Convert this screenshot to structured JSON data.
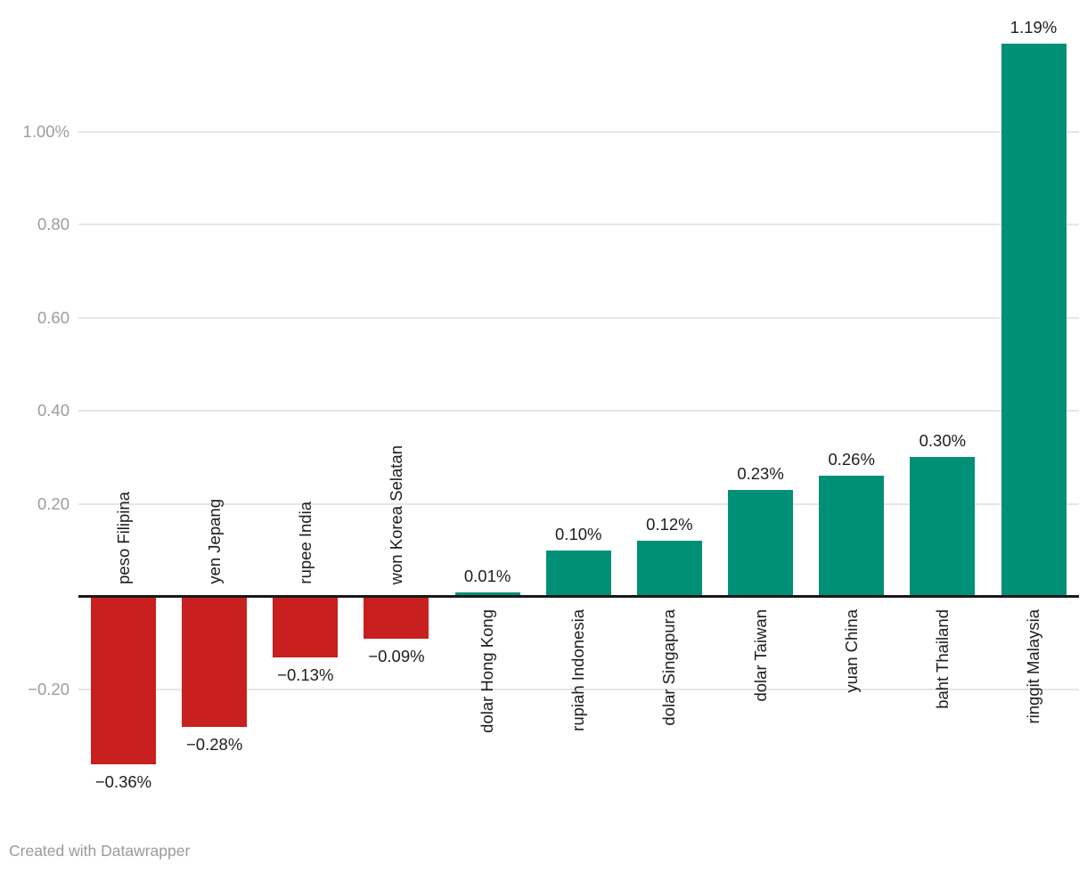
{
  "chart_data": {
    "type": "bar",
    "title": "",
    "xlabel": "",
    "ylabel": "",
    "categories": [
      "peso Filipina",
      "yen Jepang",
      "rupee India",
      "won Korea Selatan",
      "dolar Hong Kong",
      "rupiah Indonesia",
      "dolar Singapura",
      "dolar Taiwan",
      "yuan China",
      "baht Thailand",
      "ringgit Malaysia"
    ],
    "values": [
      -0.36,
      -0.28,
      -0.13,
      -0.09,
      0.01,
      0.1,
      0.12,
      0.23,
      0.26,
      0.3,
      1.19
    ],
    "value_labels": [
      "−0.36%",
      "−0.28%",
      "−0.13%",
      "−0.09%",
      "0.01%",
      "0.10%",
      "0.12%",
      "0.23%",
      "0.26%",
      "0.30%",
      "1.19%"
    ],
    "yticks": [
      {
        "value": 1.0,
        "label": "1.00%"
      },
      {
        "value": 0.8,
        "label": "0.80"
      },
      {
        "value": 0.6,
        "label": "0.60"
      },
      {
        "value": 0.4,
        "label": "0.40"
      },
      {
        "value": 0.2,
        "label": "0.20"
      },
      {
        "value": -0.2,
        "label": "−0.20"
      }
    ],
    "ylim": [
      -0.45,
      1.25
    ],
    "grid": true,
    "legend": "none",
    "category_label_position": "opposite-side-of-bar-rotated-90",
    "colors": {
      "positive": "#009077",
      "negative": "#c7201f",
      "axis_line": "#181818",
      "gridline": "#e6e6e6",
      "tick_label": "#9d9d9d",
      "value_label": "#1d1d1d",
      "category_label": "#1d1d1d"
    }
  },
  "footer": {
    "credit": "Created with Datawrapper"
  }
}
